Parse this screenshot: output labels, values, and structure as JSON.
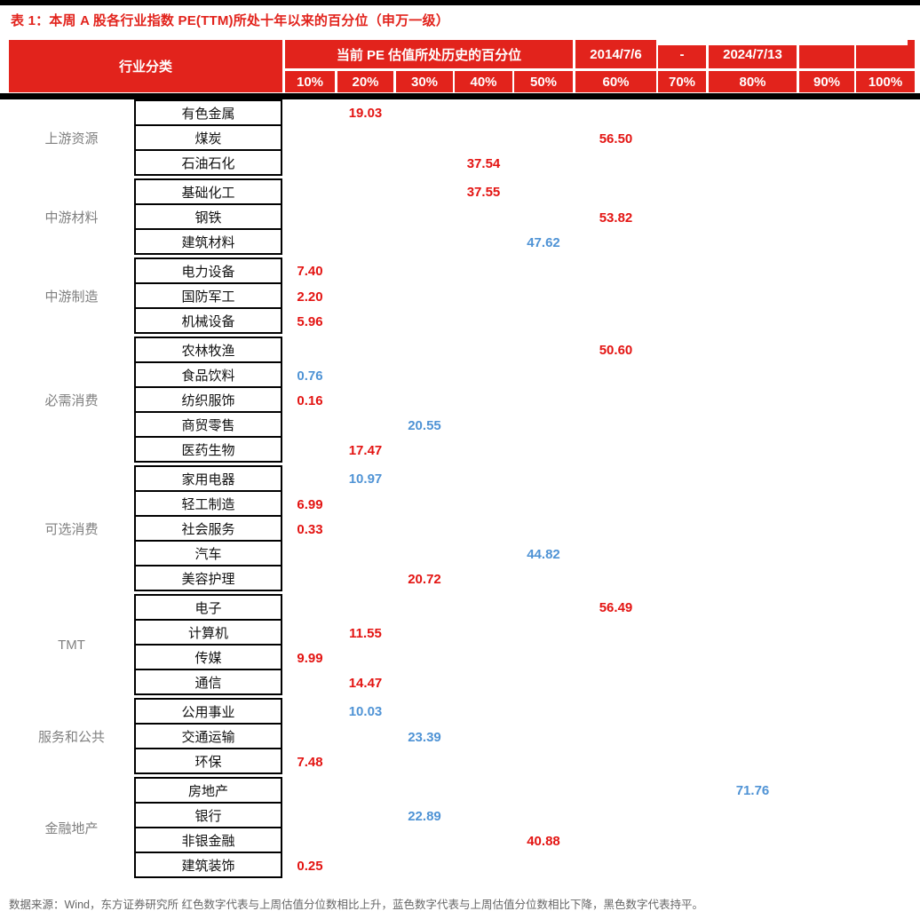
{
  "chart_data": {
    "type": "table",
    "title": "表 1：本周 A 股各行业指数 PE(TTM)所处十年以来的百分位（申万一级）",
    "header": {
      "industry_col_label": "行业分类",
      "percentile_header": "当前 PE 估值所处历史的百分位",
      "date_start": "2014/7/6",
      "date_separator": "-",
      "date_end": "2024/7/13"
    },
    "percent_ticks": [
      "10%",
      "20%",
      "30%",
      "40%",
      "50%",
      "60%",
      "70%",
      "80%",
      "90%",
      "100%"
    ],
    "value_colors": {
      "up_red": "#e31412",
      "down_blue": "#4f93d5",
      "header_red": "#e2231c"
    },
    "groups": [
      {
        "category": "上游资源",
        "rows": [
          {
            "name": "有色金属",
            "value": "19.03",
            "color": "red",
            "col": 2
          },
          {
            "name": "煤炭",
            "value": "56.50",
            "color": "red",
            "col": 6
          },
          {
            "name": "石油石化",
            "value": "37.54",
            "color": "red",
            "col": 4
          }
        ]
      },
      {
        "category": "中游材料",
        "rows": [
          {
            "name": "基础化工",
            "value": "37.55",
            "color": "red",
            "col": 4
          },
          {
            "name": "钢铁",
            "value": "53.82",
            "color": "red",
            "col": 6
          },
          {
            "name": "建筑材料",
            "value": "47.62",
            "color": "blue",
            "col": 5
          }
        ]
      },
      {
        "category": "中游制造",
        "rows": [
          {
            "name": "电力设备",
            "value": "7.40",
            "color": "red",
            "col": 1
          },
          {
            "name": "国防军工",
            "value": "2.20",
            "color": "red",
            "col": 1
          },
          {
            "name": "机械设备",
            "value": "5.96",
            "color": "red",
            "col": 1
          }
        ]
      },
      {
        "category": "必需消费",
        "rows": [
          {
            "name": "农林牧渔",
            "value": "50.60",
            "color": "red",
            "col": 6
          },
          {
            "name": "食品饮料",
            "value": "0.76",
            "color": "blue",
            "col": 1
          },
          {
            "name": "纺织服饰",
            "value": "0.16",
            "color": "red",
            "col": 1
          },
          {
            "name": "商贸零售",
            "value": "20.55",
            "color": "blue",
            "col": 3
          },
          {
            "name": "医药生物",
            "value": "17.47",
            "color": "red",
            "col": 2
          }
        ]
      },
      {
        "category": "可选消费",
        "rows": [
          {
            "name": "家用电器",
            "value": "10.97",
            "color": "blue",
            "col": 2
          },
          {
            "name": "轻工制造",
            "value": "6.99",
            "color": "red",
            "col": 1
          },
          {
            "name": "社会服务",
            "value": "0.33",
            "color": "red",
            "col": 1
          },
          {
            "name": "汽车",
            "value": "44.82",
            "color": "blue",
            "col": 5
          },
          {
            "name": "美容护理",
            "value": "20.72",
            "color": "red",
            "col": 3
          }
        ]
      },
      {
        "category": "TMT",
        "rows": [
          {
            "name": "电子",
            "value": "56.49",
            "color": "red",
            "col": 6
          },
          {
            "name": "计算机",
            "value": "11.55",
            "color": "red",
            "col": 2
          },
          {
            "name": "传媒",
            "value": "9.99",
            "color": "red",
            "col": 1
          },
          {
            "name": "通信",
            "value": "14.47",
            "color": "red",
            "col": 2
          }
        ]
      },
      {
        "category": "服务和公共",
        "rows": [
          {
            "name": "公用事业",
            "value": "10.03",
            "color": "blue",
            "col": 2
          },
          {
            "name": "交通运输",
            "value": "23.39",
            "color": "blue",
            "col": 3
          },
          {
            "name": "环保",
            "value": "7.48",
            "color": "red",
            "col": 1
          }
        ]
      },
      {
        "category": "金融地产",
        "rows": [
          {
            "name": "房地产",
            "value": "71.76",
            "color": "blue",
            "col": 8
          },
          {
            "name": "银行",
            "value": "22.89",
            "color": "blue",
            "col": 3
          },
          {
            "name": "非银金融",
            "value": "40.88",
            "color": "red",
            "col": 5
          },
          {
            "name": "建筑装饰",
            "value": "0.25",
            "color": "red",
            "col": 1
          }
        ]
      }
    ],
    "source_note": "数据来源：Wind，东方证券研究所  红色数字代表与上周估值分位数相比上升，蓝色数字代表与上周估值分位数相比下降，黑色数字代表持平。"
  }
}
